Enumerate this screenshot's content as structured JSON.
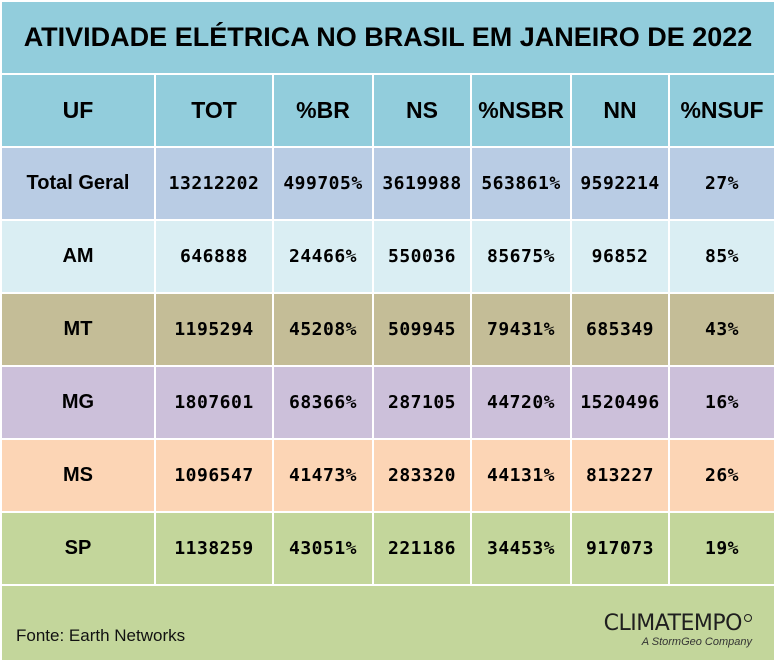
{
  "title": "ATIVIDADE ELÉTRICA NO BRASIL EM JANEIRO DE 2022",
  "columns": [
    "UF",
    "TOT",
    "%BR",
    "NS",
    "%NSBR",
    "NN",
    "%NSUF"
  ],
  "rows": [
    {
      "uf": "Total Geral",
      "tot": "13212202",
      "br": "499705%",
      "ns": "3619988",
      "nsbr": "563861%",
      "nn": "9592214",
      "nsuf": "27%",
      "color": "#b9cce4"
    },
    {
      "uf": "AM",
      "tot": "646888",
      "br": "24466%",
      "ns": "550036",
      "nsbr": "85675%",
      "nn": "96852",
      "nsuf": "85%",
      "color": "#daeef3"
    },
    {
      "uf": "MT",
      "tot": "1195294",
      "br": "45208%",
      "ns": "509945",
      "nsbr": "79431%",
      "nn": "685349",
      "nsuf": "43%",
      "color": "#c4bd97"
    },
    {
      "uf": "MG",
      "tot": "1807601",
      "br": "68366%",
      "ns": "287105",
      "nsbr": "44720%",
      "nn": "1520496",
      "nsuf": "16%",
      "color": "#ccc0da"
    },
    {
      "uf": "MS",
      "tot": "1096547",
      "br": "41473%",
      "ns": "283320",
      "nsbr": "44131%",
      "nn": "813227",
      "nsuf": "26%",
      "color": "#fcd5b5"
    },
    {
      "uf": "SP",
      "tot": "1138259",
      "br": "43051%",
      "ns": "221186",
      "nsbr": "34453%",
      "nn": "917073",
      "nsuf": "19%",
      "color": "#c3d69b"
    }
  ],
  "footer": {
    "source": "Fonte: Earth Networks",
    "logo_main": "CLIMATEMPO",
    "logo_sub": "A StormGeo Company"
  },
  "colors": {
    "header": "#92cddc",
    "footer": "#c3d69b"
  }
}
